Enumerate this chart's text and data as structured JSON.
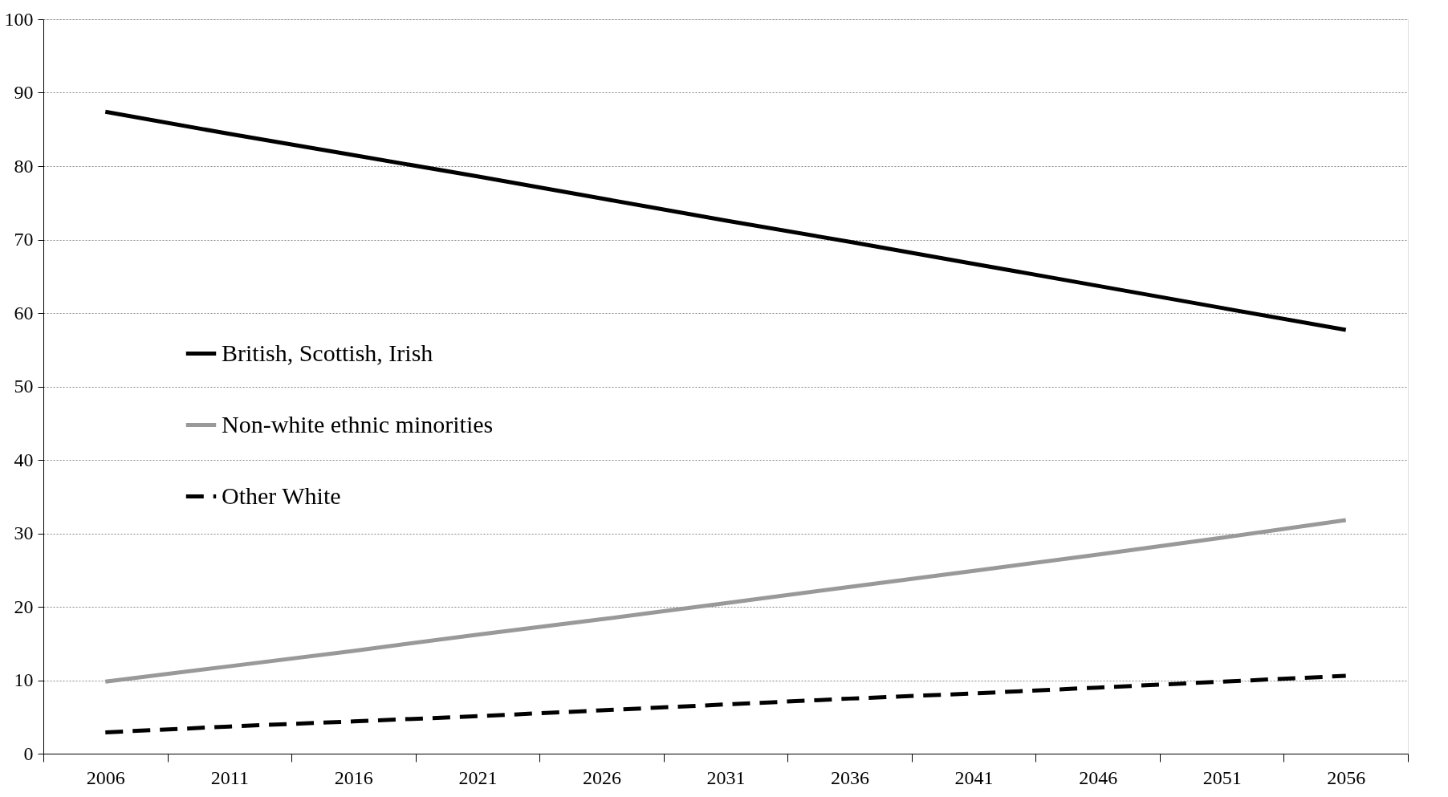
{
  "chart_data": {
    "type": "line",
    "categories": [
      "2006",
      "2011",
      "2016",
      "2021",
      "2026",
      "2031",
      "2036",
      "2041",
      "2046",
      "2051",
      "2056"
    ],
    "series": [
      {
        "name": "British, Scottish, Irish",
        "color": "#000000",
        "line_style": "solid",
        "values": [
          87.4,
          84.4,
          81.5,
          78.6,
          75.6,
          72.6,
          69.7,
          66.7,
          63.7,
          60.7,
          57.7
        ]
      },
      {
        "name": "Non-white ethnic minorities",
        "color": "#999999",
        "line_style": "solid",
        "values": [
          9.8,
          11.9,
          14.0,
          16.2,
          18.3,
          20.5,
          22.7,
          24.9,
          27.1,
          29.4,
          31.8
        ]
      },
      {
        "name": "Other White",
        "color": "#000000",
        "line_style": "dashed",
        "values": [
          2.9,
          3.7,
          4.4,
          5.1,
          5.9,
          6.7,
          7.5,
          8.2,
          9.0,
          9.8,
          10.6
        ]
      }
    ],
    "ylim": [
      0,
      100
    ],
    "yticks": [
      0,
      10,
      20,
      30,
      40,
      50,
      60,
      70,
      80,
      90,
      100
    ],
    "grid": "y",
    "legend": "left",
    "marker": "none"
  }
}
